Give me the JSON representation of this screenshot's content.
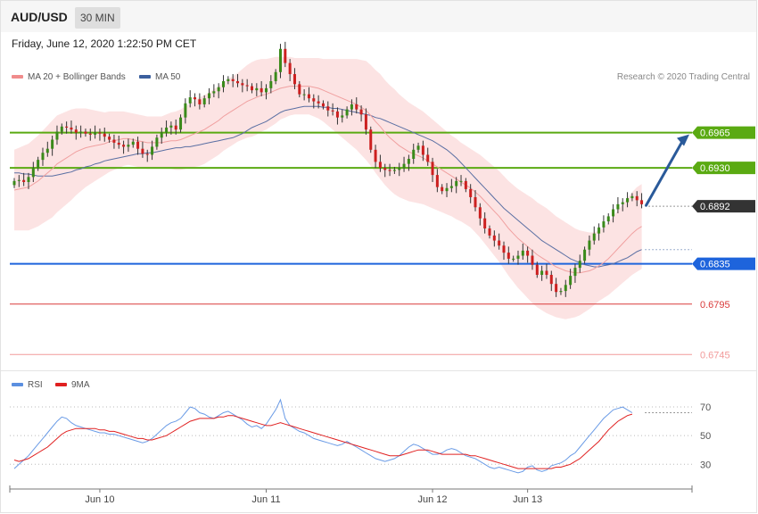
{
  "header": {
    "symbol": "AUD/USD",
    "timeframe": "30 MIN",
    "datetime": "Friday, June 12, 2020 1:22:50 PM CET"
  },
  "legend": {
    "ma20": {
      "label": "MA 20 + Bollinger Bands",
      "color": "#f08c8c"
    },
    "ma50": {
      "label": "MA 50",
      "color": "#3b5f9e"
    },
    "rsi": {
      "label": "RSI",
      "color": "#5b8fe0"
    },
    "rsi_ma": {
      "label": "9MA",
      "color": "#e02020"
    }
  },
  "credit": "Research © 2020 Trading Central",
  "chart_data": {
    "type": "line",
    "title": "",
    "price_range": [
      0.6732,
      0.7008
    ],
    "levels": [
      {
        "value": 0.6965,
        "label": "0.6965",
        "role": "resistance",
        "color": "#5aaa12"
      },
      {
        "value": 0.693,
        "label": "0.6930",
        "role": "pivot",
        "color": "#5aaa12"
      },
      {
        "value": 0.6892,
        "label": "0.6892",
        "role": "last-price",
        "color": "#333333"
      },
      {
        "value": 0.6835,
        "label": "0.6835",
        "role": "support",
        "color": "#1e64dc"
      },
      {
        "value": 0.6795,
        "label": "0.6795",
        "role": "support",
        "color": "#d93a3a"
      },
      {
        "value": 0.6745,
        "label": "0.6745",
        "role": "support",
        "color": "#f29a9a"
      }
    ],
    "forecast_arrow": {
      "from_price": 0.6892,
      "to_price": 0.6965,
      "direction": "up"
    },
    "close_series": [
      0.6917,
      0.6918,
      0.6916,
      0.6921,
      0.693,
      0.6938,
      0.6945,
      0.6949,
      0.6958,
      0.6966,
      0.6971,
      0.697,
      0.6968,
      0.6965,
      0.6966,
      0.6964,
      0.6963,
      0.6965,
      0.6964,
      0.6961,
      0.6958,
      0.6955,
      0.6953,
      0.6951,
      0.6953,
      0.6956,
      0.6949,
      0.6944,
      0.6943,
      0.6951,
      0.696,
      0.6965,
      0.697,
      0.6972,
      0.6968,
      0.698,
      0.6994,
      0.7,
      0.6998,
      0.6993,
      0.6999,
      0.7004,
      0.7006,
      0.701,
      0.7016,
      0.7018,
      0.7016,
      0.7014,
      0.7012,
      0.7011,
      0.7007,
      0.7009,
      0.7005,
      0.7009,
      0.7016,
      0.7025,
      0.7048,
      0.7034,
      0.7023,
      0.7013,
      0.7003,
      0.7003,
      0.6999,
      0.6996,
      0.6994,
      0.6991,
      0.6987,
      0.6986,
      0.698,
      0.6982,
      0.6988,
      0.6993,
      0.6988,
      0.6983,
      0.6968,
      0.6948,
      0.6936,
      0.693,
      0.6928,
      0.6927,
      0.6928,
      0.693,
      0.6934,
      0.6939,
      0.6948,
      0.6952,
      0.6943,
      0.6936,
      0.6923,
      0.6911,
      0.6907,
      0.691,
      0.6912,
      0.6917,
      0.6917,
      0.6909,
      0.6901,
      0.6891,
      0.688,
      0.687,
      0.6863,
      0.6858,
      0.6853,
      0.6846,
      0.684,
      0.684,
      0.6843,
      0.6848,
      0.6843,
      0.6834,
      0.6824,
      0.6828,
      0.6824,
      0.6815,
      0.6807,
      0.6808,
      0.6814,
      0.6823,
      0.6831,
      0.6838,
      0.6849,
      0.6858,
      0.6865,
      0.6871,
      0.6877,
      0.6882,
      0.6889,
      0.6894,
      0.6896,
      0.69,
      0.6902,
      0.6898,
      0.6894
    ],
    "ma20_series": [
      0.6908,
      0.6909,
      0.691,
      0.6911,
      0.6914,
      0.6917,
      0.6921,
      0.6925,
      0.6929,
      0.6934,
      0.6937,
      0.694,
      0.6943,
      0.6946,
      0.6948,
      0.695,
      0.6951,
      0.6952,
      0.6953,
      0.6954,
      0.6956,
      0.6957,
      0.6958,
      0.6959,
      0.6959,
      0.6958,
      0.6957,
      0.6956,
      0.6955,
      0.6955,
      0.6955,
      0.6955,
      0.6956,
      0.6957,
      0.6957,
      0.6958,
      0.696,
      0.6962,
      0.6964,
      0.6966,
      0.6968,
      0.6971,
      0.6974,
      0.6977,
      0.6981,
      0.6984,
      0.6987,
      0.699,
      0.6993,
      0.6996,
      0.6998,
      0.7,
      0.7002,
      0.7003,
      0.7005,
      0.7007,
      0.7009,
      0.701,
      0.7011,
      0.7011,
      0.7011,
      0.7011,
      0.7011,
      0.701,
      0.7009,
      0.7007,
      0.7005,
      0.7003,
      0.7001,
      0.6999,
      0.6997,
      0.6995,
      0.6993,
      0.699,
      0.6987,
      0.6982,
      0.6976,
      0.6971,
      0.6965,
      0.696,
      0.6956,
      0.6952,
      0.6949,
      0.6946,
      0.6944,
      0.6942,
      0.694,
      0.6937,
      0.6934,
      0.6931,
      0.6928,
      0.6925,
      0.6922,
      0.6919,
      0.6916,
      0.6913,
      0.691,
      0.6906,
      0.6902,
      0.6897,
      0.6892,
      0.6887,
      0.6882,
      0.6876,
      0.687,
      0.6865,
      0.686,
      0.6856,
      0.6852,
      0.6848,
      0.6844,
      0.6841,
      0.6838,
      0.6835,
      0.6832,
      0.683,
      0.6828,
      0.6827,
      0.6826,
      0.6826,
      0.6827,
      0.6828,
      0.683,
      0.6833,
      0.6836,
      0.684,
      0.6845,
      0.685,
      0.6855,
      0.686,
      0.6865,
      0.6869,
      0.6872
    ],
    "ma50_series": [
      0.6925,
      0.6925,
      0.6924,
      0.6924,
      0.6923,
      0.6922,
      0.6922,
      0.6922,
      0.6922,
      0.6923,
      0.6924,
      0.6925,
      0.6926,
      0.6928,
      0.6929,
      0.6931,
      0.6932,
      0.6934,
      0.6935,
      0.6937,
      0.6938,
      0.6939,
      0.694,
      0.6941,
      0.6942,
      0.6943,
      0.6944,
      0.6944,
      0.6945,
      0.6945,
      0.6946,
      0.6947,
      0.6948,
      0.6949,
      0.695,
      0.695,
      0.6951,
      0.6951,
      0.6952,
      0.6953,
      0.6954,
      0.6955,
      0.6956,
      0.6957,
      0.6958,
      0.6959,
      0.696,
      0.6962,
      0.6964,
      0.6967,
      0.697,
      0.6972,
      0.6974,
      0.6976,
      0.6979,
      0.6982,
      0.6985,
      0.6987,
      0.6988,
      0.6989,
      0.699,
      0.6991,
      0.6991,
      0.6991,
      0.6991,
      0.699,
      0.699,
      0.6989,
      0.6989,
      0.6988,
      0.6987,
      0.6986,
      0.6985,
      0.6984,
      0.6983,
      0.6982,
      0.698,
      0.6979,
      0.6977,
      0.6975,
      0.6973,
      0.6971,
      0.6969,
      0.6967,
      0.6965,
      0.6963,
      0.6961,
      0.6959,
      0.6957,
      0.6954,
      0.6951,
      0.6948,
      0.6944,
      0.694,
      0.6935,
      0.693,
      0.6925,
      0.692,
      0.6915,
      0.691,
      0.6905,
      0.69,
      0.6895,
      0.689,
      0.6886,
      0.6882,
      0.6878,
      0.6874,
      0.687,
      0.6866,
      0.6862,
      0.6858,
      0.6855,
      0.6852,
      0.6849,
      0.6846,
      0.6843,
      0.684,
      0.6838,
      0.6836,
      0.6834,
      0.6833,
      0.6832,
      0.6832,
      0.6833,
      0.6834,
      0.6835,
      0.6837,
      0.6839,
      0.6841,
      0.6844,
      0.6847,
      0.6849
    ],
    "bb_width_series": [
      0.004,
      0.0041,
      0.0042,
      0.0043,
      0.0044,
      0.0045,
      0.0046,
      0.0047,
      0.0048,
      0.0048,
      0.0047,
      0.0046,
      0.0045,
      0.0043,
      0.0041,
      0.0039,
      0.0037,
      0.0035,
      0.0033,
      0.0031,
      0.003,
      0.0029,
      0.0028,
      0.0027,
      0.0026,
      0.0026,
      0.0026,
      0.0026,
      0.0026,
      0.0026,
      0.0026,
      0.0026,
      0.0027,
      0.0028,
      0.0029,
      0.003,
      0.0031,
      0.0032,
      0.0033,
      0.0034,
      0.0034,
      0.0034,
      0.0034,
      0.0034,
      0.0034,
      0.0034,
      0.0034,
      0.0034,
      0.0035,
      0.0036,
      0.0037,
      0.0037,
      0.0036,
      0.0035,
      0.0034,
      0.0033,
      0.0031,
      0.003,
      0.0029,
      0.0028,
      0.0028,
      0.0028,
      0.0028,
      0.0029,
      0.003,
      0.0031,
      0.0033,
      0.0035,
      0.0037,
      0.0039,
      0.0041,
      0.0043,
      0.0045,
      0.0047,
      0.0049,
      0.005,
      0.0051,
      0.0052,
      0.0052,
      0.0052,
      0.0052,
      0.0051,
      0.005,
      0.0049,
      0.0048,
      0.0047,
      0.0046,
      0.0045,
      0.0044,
      0.0043,
      0.0042,
      0.0041,
      0.004,
      0.004,
      0.0039,
      0.0039,
      0.0039,
      0.004,
      0.0041,
      0.0042,
      0.0043,
      0.0044,
      0.0045,
      0.0046,
      0.0047,
      0.0048,
      0.0049,
      0.005,
      0.0051,
      0.0052,
      0.0052,
      0.0052,
      0.0052,
      0.0051,
      0.005,
      0.0049,
      0.0048,
      0.0046,
      0.0044,
      0.0042,
      0.004,
      0.0038,
      0.0036,
      0.0035,
      0.0035,
      0.0036,
      0.0037,
      0.0038,
      0.0039,
      0.004,
      0.0041,
      0.0042,
      0.0042
    ],
    "rsi": {
      "range": [
        14,
        80
      ],
      "ticks": [
        30,
        50,
        70
      ],
      "rsi_series": [
        27,
        30,
        33,
        36,
        40,
        44,
        48,
        52,
        56,
        60,
        63,
        62,
        59,
        57,
        56,
        55,
        54,
        53,
        52,
        52,
        51,
        51,
        50,
        49,
        48,
        47,
        46,
        45,
        46,
        48,
        51,
        54,
        57,
        59,
        60,
        62,
        66,
        70,
        69,
        66,
        65,
        63,
        62,
        64,
        66,
        67,
        65,
        63,
        61,
        58,
        56,
        57,
        55,
        58,
        63,
        68,
        75,
        62,
        57,
        55,
        53,
        52,
        50,
        48,
        47,
        46,
        45,
        44,
        43,
        44,
        46,
        44,
        42,
        40,
        38,
        36,
        34,
        33,
        32,
        33,
        34,
        36,
        39,
        42,
        44,
        43,
        41,
        39,
        37,
        37,
        38,
        40,
        41,
        40,
        38,
        36,
        35,
        34,
        32,
        30,
        28,
        27,
        28,
        27,
        26,
        25,
        24,
        25,
        28,
        29,
        26,
        25,
        26,
        29,
        30,
        31,
        33,
        36,
        38,
        42,
        46,
        50,
        54,
        58,
        62,
        65,
        68,
        69,
        70,
        68,
        66
      ],
      "ma_series": [
        33,
        32,
        33,
        34,
        36,
        38,
        40,
        42,
        45,
        48,
        51,
        53,
        54,
        55,
        55,
        55,
        55,
        55,
        54,
        54,
        53,
        53,
        52,
        51,
        50,
        49,
        48,
        48,
        47,
        47,
        48,
        49,
        50,
        52,
        54,
        56,
        58,
        60,
        61,
        62,
        62,
        62,
        62,
        63,
        63,
        64,
        64,
        63,
        62,
        61,
        60,
        59,
        58,
        57,
        57,
        58,
        59,
        58,
        57,
        56,
        55,
        54,
        53,
        52,
        51,
        50,
        49,
        48,
        47,
        46,
        45,
        44,
        43,
        42,
        41,
        40,
        39,
        38,
        37,
        36,
        36,
        36,
        37,
        38,
        39,
        40,
        40,
        40,
        39,
        38,
        37,
        37,
        37,
        37,
        37,
        37,
        36,
        36,
        35,
        34,
        33,
        32,
        31,
        30,
        29,
        28,
        27,
        27,
        27,
        27,
        27,
        27,
        27,
        27,
        28,
        28,
        29,
        30,
        32,
        34,
        37,
        40,
        43,
        46,
        50,
        54,
        57,
        60,
        62,
        64,
        65
      ]
    },
    "x_ticks": [
      {
        "label": "Jun 10",
        "index": 18
      },
      {
        "label": "Jun 11",
        "index": 53
      },
      {
        "label": "Jun 12",
        "index": 88
      },
      {
        "label": "Jun 13",
        "index": 108
      }
    ]
  }
}
